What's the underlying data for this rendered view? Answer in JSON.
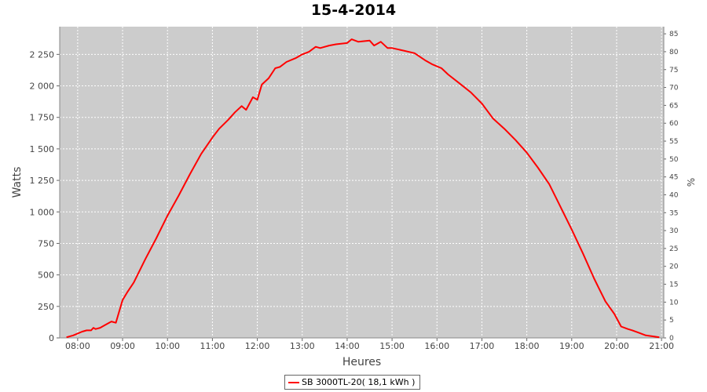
{
  "chart_data": {
    "type": "line",
    "title": "15-4-2014",
    "xlabel": "Heures",
    "ylabel": "Watts",
    "ylabel_right": "%",
    "xlim": [
      7.6,
      21.05
    ],
    "ylim": [
      0,
      2470
    ],
    "ylim_right": [
      0,
      87
    ],
    "x_ticks": [
      8,
      9,
      10,
      11,
      12,
      13,
      14,
      15,
      16,
      17,
      18,
      19,
      20,
      21
    ],
    "x_tick_labels": [
      "08:00",
      "09:00",
      "10:00",
      "11:00",
      "12:00",
      "13:00",
      "14:00",
      "15:00",
      "16:00",
      "17:00",
      "18:00",
      "19:00",
      "20:00",
      "21:00"
    ],
    "y_ticks": [
      0,
      250,
      500,
      750,
      1000,
      1250,
      1500,
      1750,
      2000,
      2250
    ],
    "y_tick_labels": [
      "0",
      "250",
      "500",
      "750",
      "1 000",
      "1 250",
      "1 500",
      "1 750",
      "2 000",
      "2 250"
    ],
    "y_right_ticks": [
      0,
      5,
      10,
      15,
      20,
      25,
      30,
      35,
      40,
      45,
      50,
      55,
      60,
      65,
      70,
      75,
      80,
      85
    ],
    "grid": true,
    "background": "#cccccc",
    "legend_position": "bottom-center",
    "series": [
      {
        "name": "SB 3000TL-20( 18,1 kWh )",
        "color": "#ff0000",
        "x": [
          7.75,
          7.9,
          8.1,
          8.2,
          8.3,
          8.35,
          8.4,
          8.5,
          8.6,
          8.75,
          8.85,
          8.9,
          9.0,
          9.1,
          9.25,
          9.5,
          9.75,
          10.0,
          10.25,
          10.5,
          10.75,
          11.0,
          11.15,
          11.35,
          11.5,
          11.65,
          11.75,
          11.9,
          12.0,
          12.1,
          12.25,
          12.4,
          12.5,
          12.65,
          12.85,
          13.0,
          13.15,
          13.3,
          13.4,
          13.6,
          13.75,
          14.0,
          14.1,
          14.25,
          14.5,
          14.6,
          14.75,
          14.9,
          15.0,
          15.25,
          15.5,
          15.75,
          15.9,
          16.1,
          16.25,
          16.5,
          16.75,
          17.0,
          17.25,
          17.5,
          17.75,
          18.0,
          18.25,
          18.5,
          18.75,
          19.0,
          19.25,
          19.5,
          19.75,
          19.95,
          20.1,
          20.25,
          20.35,
          20.5,
          20.65,
          20.85,
          20.95
        ],
        "y": [
          5,
          20,
          50,
          60,
          60,
          80,
          70,
          80,
          100,
          130,
          120,
          180,
          300,
          360,
          440,
          620,
          790,
          970,
          1130,
          1300,
          1460,
          1590,
          1660,
          1730,
          1790,
          1840,
          1810,
          1910,
          1890,
          2010,
          2060,
          2140,
          2150,
          2190,
          2220,
          2250,
          2270,
          2310,
          2300,
          2320,
          2330,
          2340,
          2370,
          2350,
          2360,
          2320,
          2350,
          2300,
          2300,
          2280,
          2260,
          2200,
          2170,
          2140,
          2090,
          2020,
          1950,
          1860,
          1740,
          1660,
          1570,
          1470,
          1350,
          1220,
          1040,
          860,
          670,
          470,
          290,
          190,
          90,
          70,
          60,
          40,
          20,
          10,
          5
        ]
      }
    ]
  }
}
